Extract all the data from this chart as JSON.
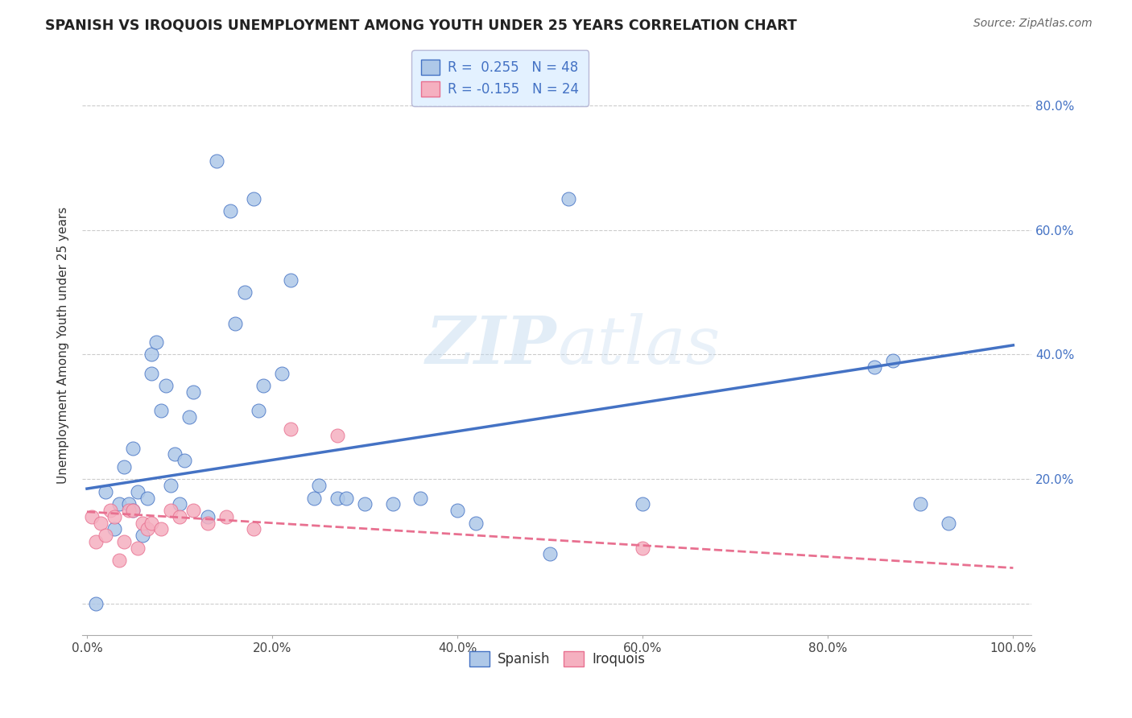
{
  "title": "SPANISH VS IROQUOIS UNEMPLOYMENT AMONG YOUTH UNDER 25 YEARS CORRELATION CHART",
  "source": "Source: ZipAtlas.com",
  "ylabel": "Unemployment Among Youth under 25 years",
  "xlim": [
    -0.005,
    1.02
  ],
  "ylim": [
    -0.05,
    0.88
  ],
  "xticks": [
    0.0,
    0.2,
    0.4,
    0.6,
    0.8,
    1.0
  ],
  "yticks": [
    0.0,
    0.2,
    0.4,
    0.6,
    0.8
  ],
  "right_ytick_labels": [
    "",
    "20.0%",
    "40.0%",
    "60.0%",
    "80.0%"
  ],
  "xtick_labels": [
    "0.0%",
    "20.0%",
    "40.0%",
    "60.0%",
    "80.0%",
    "100.0%"
  ],
  "spanish_R": 0.255,
  "spanish_N": 48,
  "iroquois_R": -0.155,
  "iroquois_N": 24,
  "watermark_part1": "ZIP",
  "watermark_part2": "atlas",
  "spanish_color": "#aec8e8",
  "iroquois_color": "#f5b0c0",
  "spanish_edge_color": "#4472c4",
  "iroquois_edge_color": "#e87090",
  "spanish_line_color": "#4472c4",
  "iroquois_line_color": "#e87090",
  "background_color": "#ffffff",
  "spanish_line_start_y": 0.185,
  "spanish_line_end_y": 0.415,
  "iroquois_line_start_y": 0.148,
  "iroquois_line_end_y": 0.058,
  "spanish_x": [
    0.01,
    0.02,
    0.03,
    0.035,
    0.04,
    0.045,
    0.05,
    0.05,
    0.055,
    0.06,
    0.065,
    0.07,
    0.07,
    0.075,
    0.08,
    0.085,
    0.09,
    0.095,
    0.1,
    0.105,
    0.11,
    0.115,
    0.13,
    0.14,
    0.155,
    0.16,
    0.17,
    0.18,
    0.185,
    0.19,
    0.21,
    0.22,
    0.245,
    0.25,
    0.27,
    0.28,
    0.3,
    0.33,
    0.36,
    0.4,
    0.42,
    0.5,
    0.52,
    0.6,
    0.85,
    0.87,
    0.9,
    0.93
  ],
  "spanish_y": [
    0.0,
    0.18,
    0.12,
    0.16,
    0.22,
    0.16,
    0.25,
    0.15,
    0.18,
    0.11,
    0.17,
    0.37,
    0.4,
    0.42,
    0.31,
    0.35,
    0.19,
    0.24,
    0.16,
    0.23,
    0.3,
    0.34,
    0.14,
    0.71,
    0.63,
    0.45,
    0.5,
    0.65,
    0.31,
    0.35,
    0.37,
    0.52,
    0.17,
    0.19,
    0.17,
    0.17,
    0.16,
    0.16,
    0.17,
    0.15,
    0.13,
    0.08,
    0.65,
    0.16,
    0.38,
    0.39,
    0.16,
    0.13
  ],
  "iroquois_x": [
    0.005,
    0.01,
    0.015,
    0.02,
    0.025,
    0.03,
    0.035,
    0.04,
    0.045,
    0.05,
    0.055,
    0.06,
    0.065,
    0.07,
    0.08,
    0.09,
    0.1,
    0.115,
    0.13,
    0.15,
    0.18,
    0.22,
    0.27,
    0.6
  ],
  "iroquois_y": [
    0.14,
    0.1,
    0.13,
    0.11,
    0.15,
    0.14,
    0.07,
    0.1,
    0.15,
    0.15,
    0.09,
    0.13,
    0.12,
    0.13,
    0.12,
    0.15,
    0.14,
    0.15,
    0.13,
    0.14,
    0.12,
    0.28,
    0.27,
    0.09
  ],
  "grid_color": "#cccccc",
  "legend_box_facecolor": "#ddeeff",
  "legend_box_edgecolor": "#aaaacc"
}
